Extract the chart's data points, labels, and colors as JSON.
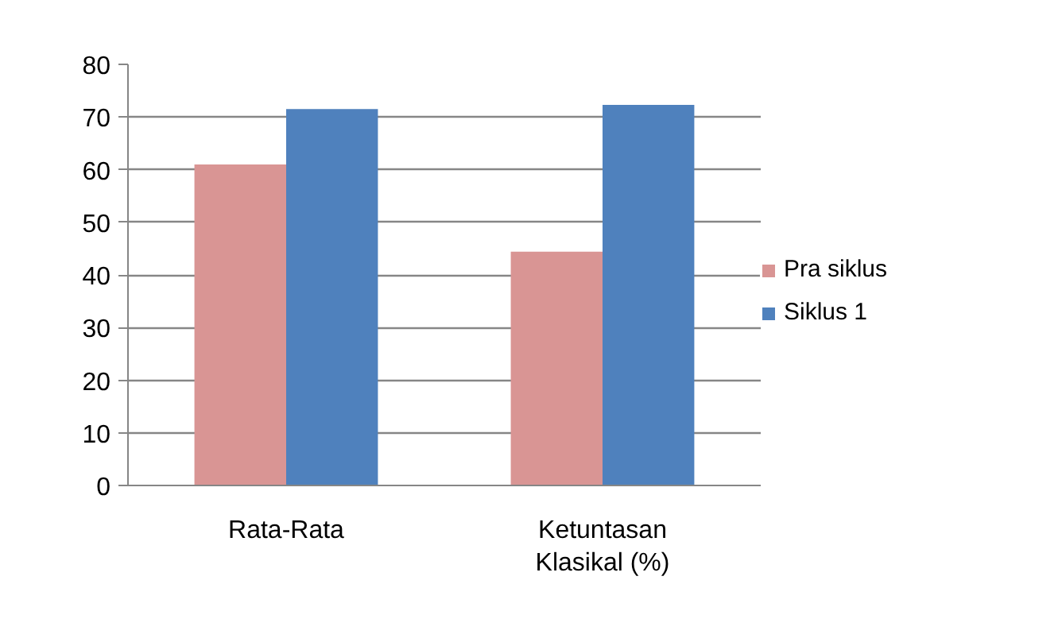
{
  "chart_data": {
    "type": "bar",
    "categories": [
      "Rata-Rata",
      "Ketuntasan Klasikal (%)"
    ],
    "series": [
      {
        "name": "Pra siklus",
        "color": "#d99594",
        "values": [
          61.0,
          44.4
        ]
      },
      {
        "name": "Siklus 1",
        "color": "#4f81bd",
        "values": [
          71.5,
          72.3
        ]
      }
    ],
    "ylim": [
      0,
      80
    ],
    "yticks": [
      0,
      10,
      20,
      30,
      40,
      50,
      60,
      70,
      80
    ],
    "grid": "y",
    "legend": "right"
  }
}
